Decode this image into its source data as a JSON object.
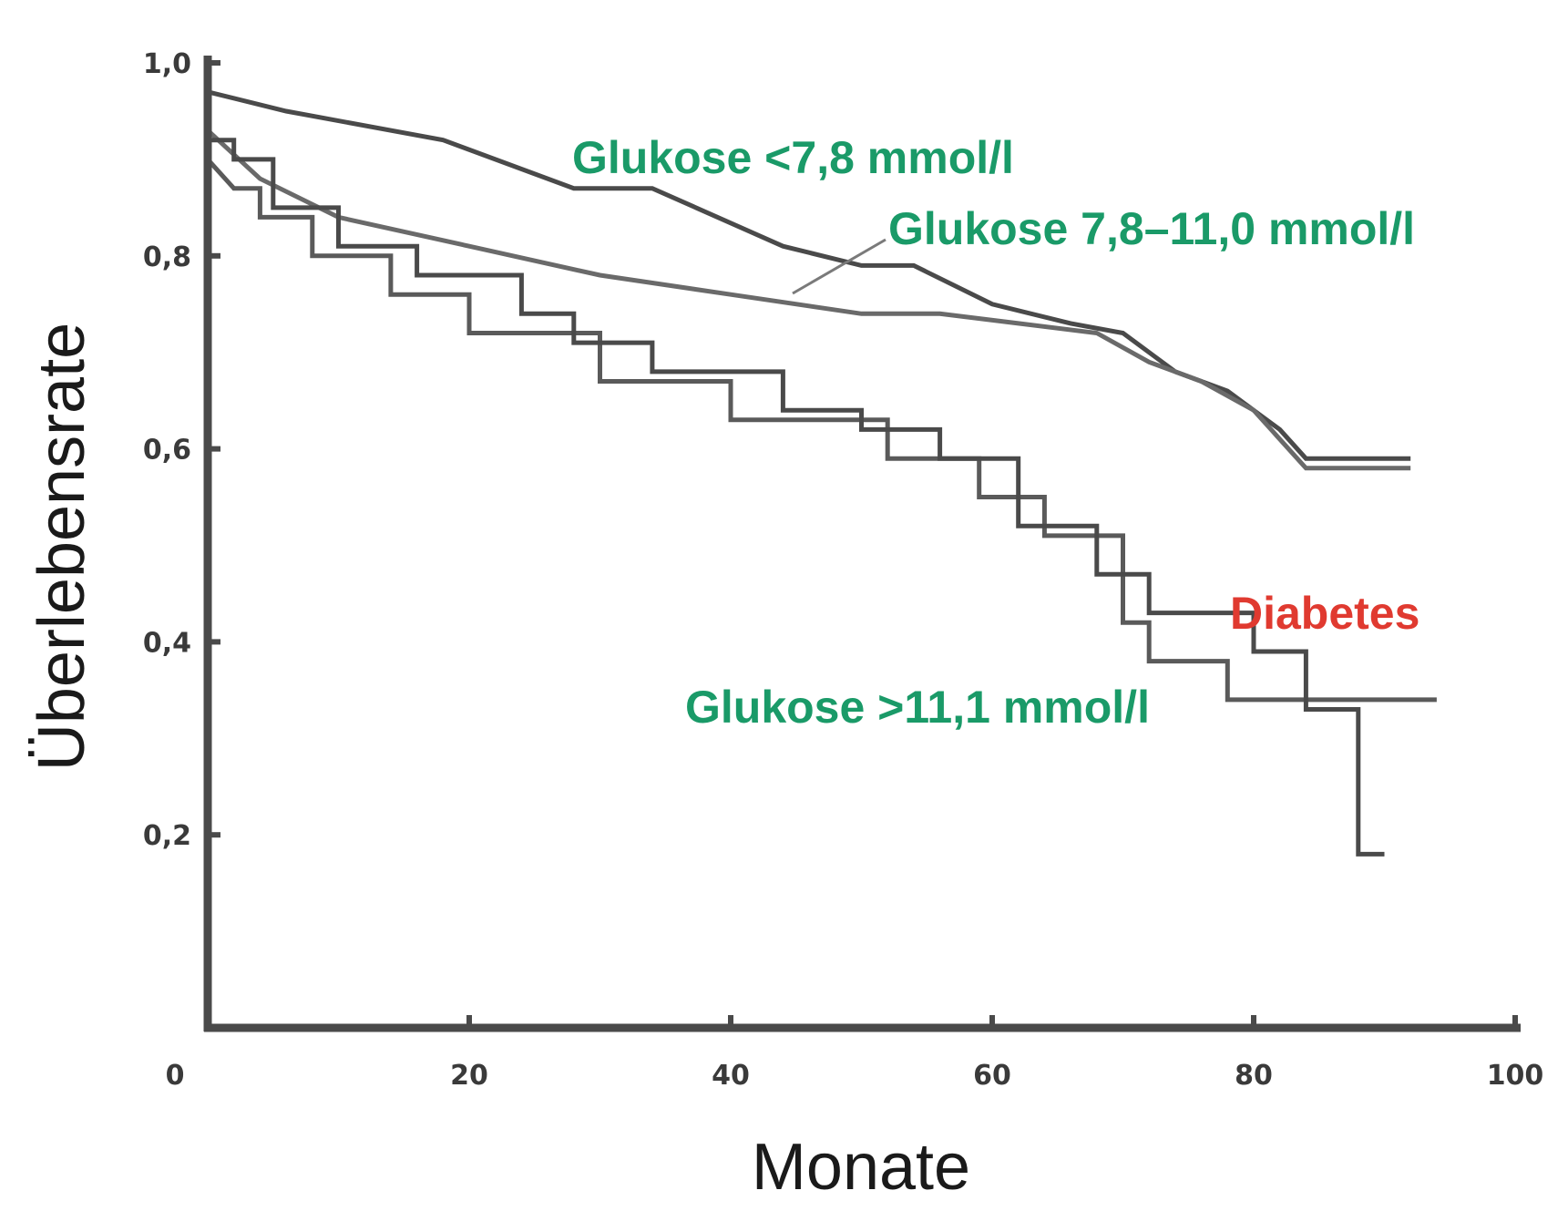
{
  "chart_data": {
    "type": "line",
    "title": "",
    "xlabel": "Monate",
    "ylabel": "Überlebensrate",
    "xlim": [
      0,
      100
    ],
    "ylim": [
      0,
      1.0
    ],
    "x_ticks": [
      {
        "value": 0,
        "label": "0"
      },
      {
        "value": 20,
        "label": "20"
      },
      {
        "value": 40,
        "label": "40"
      },
      {
        "value": 60,
        "label": "60"
      },
      {
        "value": 80,
        "label": "80"
      },
      {
        "value": 100,
        "label": "100"
      }
    ],
    "y_ticks": [
      {
        "value": 0.2,
        "label": "0,2"
      },
      {
        "value": 0.4,
        "label": "0,4"
      },
      {
        "value": 0.6,
        "label": "0,6"
      },
      {
        "value": 0.8,
        "label": "0,8"
      },
      {
        "value": 1.0,
        "label": "1,0"
      }
    ],
    "grid": false,
    "series": [
      {
        "label": "Glukose <7,8 mmol/l",
        "color": "#4a4a4a",
        "points": [
          [
            0,
            0.97
          ],
          [
            6,
            0.95
          ],
          [
            18,
            0.92
          ],
          [
            28,
            0.87
          ],
          [
            34,
            0.87
          ],
          [
            44,
            0.81
          ],
          [
            50,
            0.79
          ],
          [
            54,
            0.79
          ],
          [
            60,
            0.75
          ],
          [
            66,
            0.73
          ],
          [
            70,
            0.72
          ],
          [
            74,
            0.68
          ],
          [
            78,
            0.66
          ],
          [
            82,
            0.62
          ],
          [
            84,
            0.59
          ],
          [
            92,
            0.59
          ]
        ]
      },
      {
        "label": "Glukose 7,8–11,0 mmol/l",
        "color": "#6a6a6a",
        "points": [
          [
            0,
            0.93
          ],
          [
            4,
            0.88
          ],
          [
            10,
            0.84
          ],
          [
            20,
            0.81
          ],
          [
            30,
            0.78
          ],
          [
            40,
            0.76
          ],
          [
            50,
            0.74
          ],
          [
            56,
            0.74
          ],
          [
            62,
            0.73
          ],
          [
            68,
            0.72
          ],
          [
            72,
            0.69
          ],
          [
            76,
            0.67
          ],
          [
            80,
            0.64
          ],
          [
            84,
            0.58
          ],
          [
            92,
            0.58
          ]
        ]
      },
      {
        "label": "Glukose >11,1 mmol/l",
        "color": "#5a5a5a",
        "points": [
          [
            0,
            0.9
          ],
          [
            2,
            0.87
          ],
          [
            4,
            0.87
          ],
          [
            4,
            0.84
          ],
          [
            8,
            0.84
          ],
          [
            8,
            0.8
          ],
          [
            14,
            0.8
          ],
          [
            14,
            0.76
          ],
          [
            20,
            0.76
          ],
          [
            20,
            0.72
          ],
          [
            30,
            0.72
          ],
          [
            30,
            0.67
          ],
          [
            40,
            0.67
          ],
          [
            40,
            0.63
          ],
          [
            52,
            0.63
          ],
          [
            52,
            0.59
          ],
          [
            59,
            0.59
          ],
          [
            59,
            0.55
          ],
          [
            64,
            0.55
          ],
          [
            64,
            0.51
          ],
          [
            70,
            0.51
          ],
          [
            70,
            0.42
          ],
          [
            72,
            0.42
          ],
          [
            72,
            0.38
          ],
          [
            78,
            0.38
          ],
          [
            78,
            0.34
          ],
          [
            88,
            0.34
          ],
          [
            94,
            0.34
          ]
        ]
      },
      {
        "label": "Diabetes",
        "color": "#4a4a4a",
        "points": [
          [
            0,
            0.92
          ],
          [
            2,
            0.92
          ],
          [
            2,
            0.9
          ],
          [
            5,
            0.9
          ],
          [
            5,
            0.85
          ],
          [
            10,
            0.85
          ],
          [
            10,
            0.81
          ],
          [
            16,
            0.81
          ],
          [
            16,
            0.78
          ],
          [
            24,
            0.78
          ],
          [
            24,
            0.74
          ],
          [
            28,
            0.74
          ],
          [
            28,
            0.71
          ],
          [
            34,
            0.71
          ],
          [
            34,
            0.68
          ],
          [
            44,
            0.68
          ],
          [
            44,
            0.64
          ],
          [
            50,
            0.64
          ],
          [
            50,
            0.62
          ],
          [
            56,
            0.62
          ],
          [
            56,
            0.59
          ],
          [
            62,
            0.59
          ],
          [
            62,
            0.52
          ],
          [
            68,
            0.52
          ],
          [
            68,
            0.47
          ],
          [
            72,
            0.47
          ],
          [
            72,
            0.43
          ],
          [
            80,
            0.43
          ],
          [
            80,
            0.39
          ],
          [
            84,
            0.39
          ],
          [
            84,
            0.33
          ],
          [
            88,
            0.33
          ],
          [
            88,
            0.18
          ],
          [
            90,
            0.18
          ]
        ]
      }
    ],
    "annotations": [
      {
        "text": "Glukose <7,8 mmol/l",
        "color": "#1a9a68"
      },
      {
        "text": "Glukose 7,8–11,0 mmol/l",
        "color": "#1a9a68"
      },
      {
        "text": "Diabetes",
        "color": "#e03a30"
      },
      {
        "text": "Glukose >11,1 mmol/l",
        "color": "#1a9a68"
      }
    ]
  }
}
